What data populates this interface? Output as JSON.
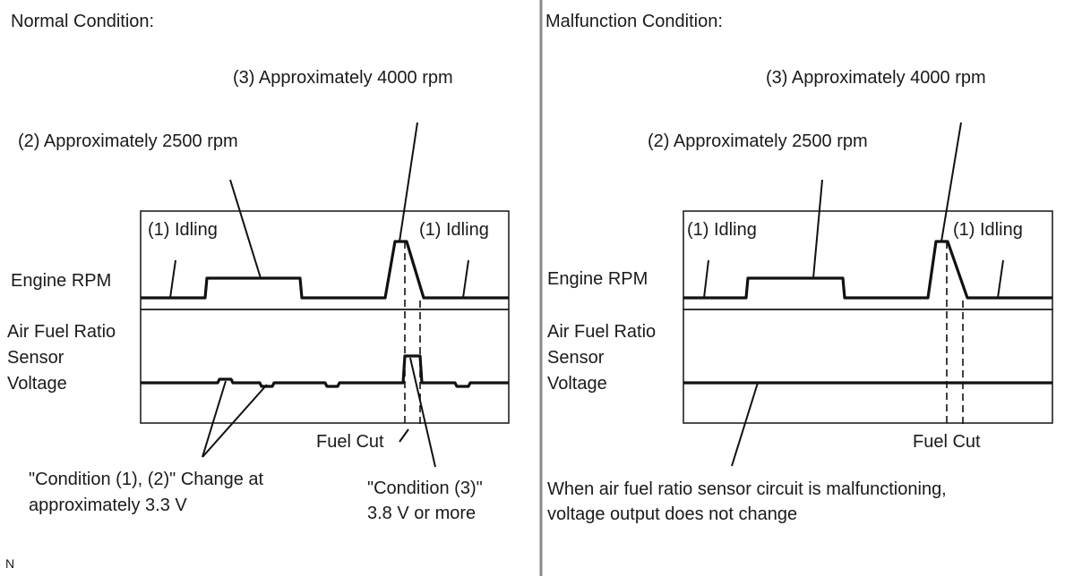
{
  "left": {
    "title": "Normal Condition:",
    "rpm_4000": "(3) Approximately 4000 rpm",
    "rpm_2500": "(2) Approximately 2500 rpm",
    "idling_1": "(1) Idling",
    "idling_2": "(1) Idling",
    "engine_rpm": "Engine RPM",
    "sensor_label": [
      "Air Fuel Ratio",
      "Sensor",
      "Voltage"
    ],
    "fuel_cut": "Fuel Cut",
    "note_12": [
      "\"Condition (1), (2)\" Change at",
      "approximately 3.3 V"
    ],
    "note_3": [
      "\"Condition (3)\"",
      "3.8 V or more"
    ]
  },
  "right": {
    "title": "Malfunction Condition:",
    "rpm_4000": "(3) Approximately 4000 rpm",
    "rpm_2500": "(2) Approximately 2500 rpm",
    "idling_1": "(1) Idling",
    "idling_2": "(1) Idling",
    "engine_rpm": "Engine RPM",
    "sensor_label": [
      "Air Fuel Ratio",
      "Sensor",
      "Voltage"
    ],
    "fuel_cut": "Fuel Cut",
    "note": [
      "When air fuel ratio sensor circuit is malfunctioning,",
      "voltage output does not change"
    ]
  },
  "footer_mark": "N"
}
